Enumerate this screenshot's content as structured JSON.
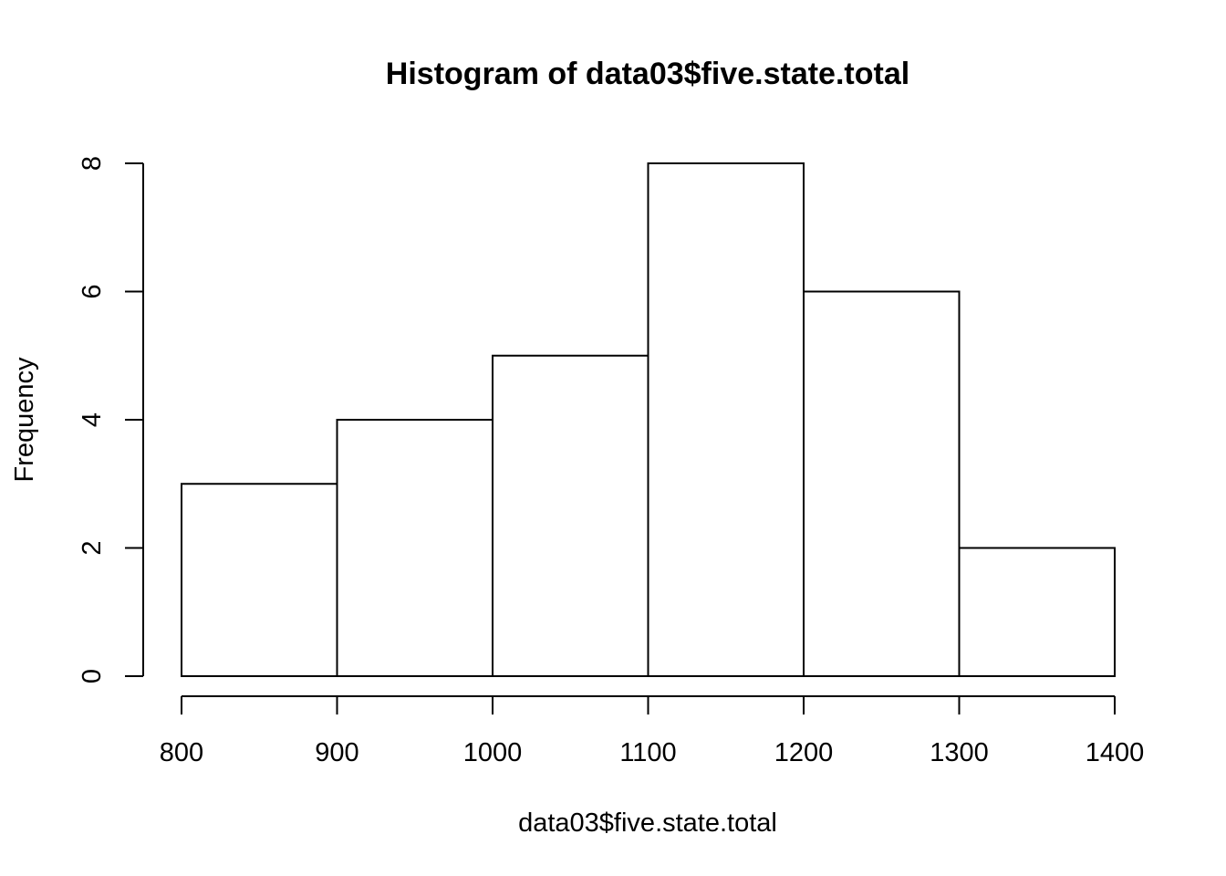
{
  "chart_data": {
    "type": "bar",
    "title": "Histogram of data03$five.state.total",
    "xlabel": "data03$five.state.total",
    "ylabel": "Frequency",
    "bins": [
      {
        "from": 800,
        "to": 900,
        "count": 3
      },
      {
        "from": 900,
        "to": 1000,
        "count": 4
      },
      {
        "from": 1000,
        "to": 1100,
        "count": 5
      },
      {
        "from": 1100,
        "to": 1200,
        "count": 8
      },
      {
        "from": 1200,
        "to": 1300,
        "count": 6
      },
      {
        "from": 1300,
        "to": 1400,
        "count": 2
      }
    ],
    "xticks": [
      800,
      900,
      1000,
      1100,
      1200,
      1300,
      1400
    ],
    "yticks": [
      0,
      2,
      4,
      6,
      8
    ],
    "xlim": [
      800,
      1400
    ],
    "ylim": [
      0,
      8
    ],
    "grid": false,
    "bar_fill": "#ffffff",
    "bar_stroke": "#000000"
  }
}
